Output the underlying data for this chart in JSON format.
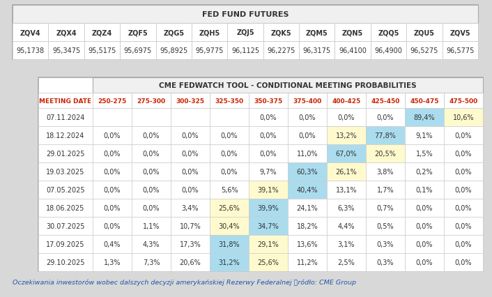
{
  "futures_headers": [
    "ZQV4",
    "ZQX4",
    "ZQZ4",
    "ZQF5",
    "ZQG5",
    "ZQH5",
    "ZQJ5",
    "ZQK5",
    "ZQM5",
    "ZQN5",
    "ZQQ5",
    "ZQU5",
    "ZQV5"
  ],
  "futures_values": [
    "95,1738",
    "95,3475",
    "95,5175",
    "95,6975",
    "95,8925",
    "95,9775",
    "96,1125",
    "96,2275",
    "96,3175",
    "96,4100",
    "96,4900",
    "96,5275",
    "96,5775"
  ],
  "prob_title": "CME FEDWATCH TOOL - CONDITIONAL MEETING PROBABILITIES",
  "prob_cols": [
    "MEETING DATE",
    "250-275",
    "275-300",
    "300-325",
    "325-350",
    "350-375",
    "375-400",
    "400-425",
    "425-450",
    "450-475",
    "475-500"
  ],
  "prob_data": [
    [
      "07.11.2024",
      "",
      "",
      "",
      "",
      "0,0%",
      "0,0%",
      "0,0%",
      "0,0%",
      "89,4%",
      "10,6%"
    ],
    [
      "18.12.2024",
      "0,0%",
      "0,0%",
      "0,0%",
      "0,0%",
      "0,0%",
      "0,0%",
      "13,2%",
      "77,8%",
      "9,1%",
      "0,0%"
    ],
    [
      "29.01.2025",
      "0,0%",
      "0,0%",
      "0,0%",
      "0,0%",
      "0,0%",
      "11,0%",
      "67,0%",
      "20,5%",
      "1,5%",
      "0,0%"
    ],
    [
      "19.03.2025",
      "0,0%",
      "0,0%",
      "0,0%",
      "0,0%",
      "9,7%",
      "60,3%",
      "26,1%",
      "3,8%",
      "0,2%",
      "0,0%"
    ],
    [
      "07.05.2025",
      "0,0%",
      "0,0%",
      "0,0%",
      "5,6%",
      "39,1%",
      "40,4%",
      "13,1%",
      "1,7%",
      "0,1%",
      "0,0%"
    ],
    [
      "18.06.2025",
      "0,0%",
      "0,0%",
      "3,4%",
      "25,6%",
      "39,9%",
      "24,1%",
      "6,3%",
      "0,7%",
      "0,0%",
      "0,0%"
    ],
    [
      "30.07.2025",
      "0,0%",
      "1,1%",
      "10,7%",
      "30,4%",
      "34,7%",
      "18,2%",
      "4,4%",
      "0,5%",
      "0,0%",
      "0,0%"
    ],
    [
      "17.09.2025",
      "0,4%",
      "4,3%",
      "17,3%",
      "31,8%",
      "29,1%",
      "13,6%",
      "3,1%",
      "0,3%",
      "0,0%",
      "0,0%"
    ],
    [
      "29.10.2025",
      "1,3%",
      "7,3%",
      "20,6%",
      "31,2%",
      "25,6%",
      "11,2%",
      "2,5%",
      "0,3%",
      "0,0%",
      "0,0%"
    ]
  ],
  "futures_title": "FED FUND FUTURES",
  "footnote": "Oczekiwania inwestorów wobec dalszych decyzji amerykańskiej Rezerwy Federalnej ។ródło: CME Group",
  "bg_color": "#d8d8d8",
  "table_border": "#aaaaaa",
  "cell_border": "#cccccc",
  "header_bg": "#f0f0f0",
  "white": "#ffffff",
  "light_blue": "#aadcee",
  "light_yellow": "#fffacd",
  "date_col_color": "#cc2200",
  "text_color": "#333333"
}
